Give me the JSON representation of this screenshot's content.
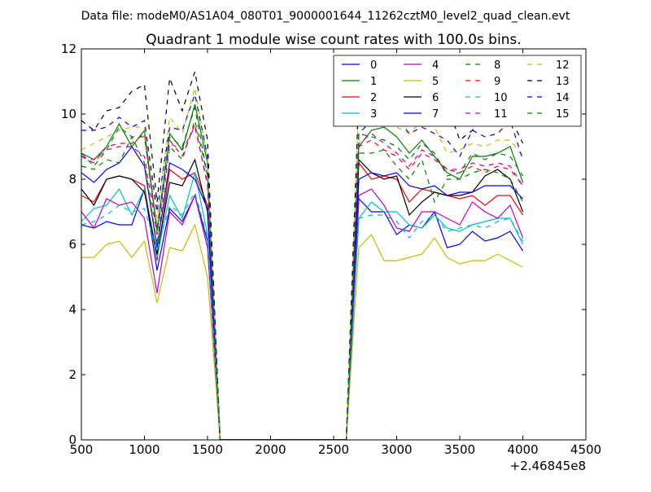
{
  "suptitle": "Data file: modeM0/AS1A04_080T01_9000001644_11262cztM0_level2_quad_clean.evt",
  "chart_data": {
    "type": "line",
    "title": "Quadrant 1 module wise count rates with 100.0s bins.",
    "xlabel": "",
    "ylabel": "",
    "x_offset_label": "+2.46845e8",
    "xlim": [
      500,
      4500
    ],
    "ylim": [
      0,
      12
    ],
    "xticks": [
      500,
      1000,
      1500,
      2000,
      2500,
      3000,
      3500,
      4000,
      4500
    ],
    "yticks": [
      0,
      2,
      4,
      6,
      8,
      10,
      12
    ],
    "grid": false,
    "legend": {
      "placement": "top-right",
      "columns": 4
    },
    "x": [
      500,
      600,
      700,
      800,
      900,
      1000,
      1100,
      1200,
      1300,
      1400,
      1500,
      1600,
      1700,
      1800,
      1900,
      2000,
      2100,
      2200,
      2300,
      2400,
      2500,
      2600,
      2700,
      2800,
      2900,
      3000,
      3100,
      3200,
      3300,
      3400,
      3500,
      3600,
      3700,
      3800,
      3900,
      4000
    ],
    "series": [
      {
        "name": "0",
        "color": "#0000ff",
        "dash": "solid",
        "values": [
          6.6,
          6.5,
          6.7,
          6.6,
          6.6,
          7.7,
          5.2,
          7.1,
          6.7,
          7.5,
          6.1,
          0,
          0,
          0,
          0,
          0,
          0,
          0,
          0,
          0,
          0,
          0,
          7.4,
          7.0,
          7.0,
          6.3,
          6.6,
          6.5,
          7.0,
          5.9,
          6.0,
          6.4,
          6.1,
          6.2,
          6.4,
          5.8
        ]
      },
      {
        "name": "1",
        "color": "#008000",
        "dash": "solid",
        "values": [
          8.8,
          8.6,
          9.0,
          9.7,
          9.0,
          9.5,
          6.4,
          9.4,
          8.9,
          10.3,
          8.5,
          0,
          0,
          0,
          0,
          0,
          0,
          0,
          0,
          0,
          0,
          0,
          9.0,
          9.5,
          9.6,
          9.3,
          8.8,
          9.2,
          8.7,
          8.2,
          8.0,
          8.7,
          8.7,
          8.8,
          9.0,
          7.9
        ]
      },
      {
        "name": "2",
        "color": "#ff0000",
        "dash": "solid",
        "values": [
          7.5,
          7.3,
          8.0,
          8.1,
          8.0,
          7.8,
          5.5,
          8.3,
          8.0,
          8.2,
          7.2,
          0,
          0,
          0,
          0,
          0,
          0,
          0,
          0,
          0,
          0,
          0,
          8.5,
          8.0,
          8.1,
          8.0,
          7.3,
          7.7,
          7.6,
          7.5,
          7.4,
          7.5,
          7.2,
          7.5,
          7.5,
          6.9
        ]
      },
      {
        "name": "3",
        "color": "#00bfbf",
        "dash": "solid",
        "values": [
          6.7,
          7.1,
          7.2,
          7.7,
          6.9,
          7.7,
          5.6,
          7.5,
          6.8,
          8.2,
          6.3,
          0,
          0,
          0,
          0,
          0,
          0,
          0,
          0,
          0,
          0,
          0,
          6.8,
          7.3,
          7.0,
          7.0,
          6.6,
          6.5,
          6.9,
          6.5,
          6.4,
          6.6,
          6.7,
          6.8,
          6.8,
          6.0
        ]
      },
      {
        "name": "4",
        "color": "#bf00bf",
        "dash": "solid",
        "values": [
          7.0,
          6.5,
          7.4,
          7.2,
          7.3,
          6.8,
          4.5,
          7.0,
          6.6,
          7.5,
          5.9,
          0,
          0,
          0,
          0,
          0,
          0,
          0,
          0,
          0,
          0,
          0,
          7.5,
          7.7,
          7.2,
          6.5,
          6.4,
          7.0,
          7.0,
          6.8,
          6.6,
          7.3,
          7.0,
          6.8,
          7.2,
          6.2
        ]
      },
      {
        "name": "5",
        "color": "#bfbf00",
        "dash": "solid",
        "values": [
          5.6,
          5.6,
          6.0,
          6.1,
          5.6,
          6.1,
          4.2,
          5.9,
          5.8,
          6.6,
          5.0,
          0,
          0,
          0,
          0,
          0,
          0,
          0,
          0,
          0,
          0,
          0,
          5.9,
          6.3,
          5.5,
          5.5,
          5.6,
          5.7,
          6.2,
          5.6,
          5.4,
          5.5,
          5.5,
          5.7,
          5.5,
          5.3
        ]
      },
      {
        "name": "6",
        "color": "#000000",
        "dash": "solid",
        "values": [
          7.7,
          7.2,
          8.0,
          8.1,
          8.0,
          7.6,
          5.7,
          7.9,
          7.8,
          8.6,
          7.0,
          0,
          0,
          0,
          0,
          0,
          0,
          0,
          0,
          0,
          0,
          0,
          8.6,
          8.2,
          8.0,
          8.1,
          6.9,
          7.3,
          7.6,
          7.5,
          7.5,
          7.6,
          8.1,
          8.3,
          8.0,
          7.0
        ]
      },
      {
        "name": "7",
        "color": "#0000ff",
        "dash": "solid",
        "values": [
          8.2,
          7.9,
          8.3,
          8.5,
          9.0,
          8.4,
          5.9,
          8.5,
          8.3,
          8.0,
          7.1,
          0,
          0,
          0,
          0,
          0,
          0,
          0,
          0,
          0,
          0,
          0,
          8.0,
          8.2,
          8.1,
          8.2,
          7.8,
          7.7,
          7.8,
          7.5,
          7.6,
          7.6,
          7.8,
          7.8,
          7.8,
          7.4
        ]
      },
      {
        "name": "8",
        "color": "#008000",
        "dash": "dashed",
        "values": [
          8.4,
          8.3,
          8.6,
          8.5,
          9.3,
          8.5,
          6.0,
          9.0,
          8.6,
          9.8,
          8.1,
          0,
          0,
          0,
          0,
          0,
          0,
          0,
          0,
          0,
          0,
          0,
          8.8,
          8.8,
          8.9,
          8.4,
          8.0,
          8.6,
          7.3,
          8.0,
          8.0,
          8.2,
          8.3,
          8.2,
          8.0,
          7.3
        ]
      },
      {
        "name": "9",
        "color": "#ff0000",
        "dash": "dashed",
        "values": [
          8.7,
          8.5,
          9.0,
          9.1,
          9.1,
          9.4,
          6.3,
          9.2,
          8.7,
          9.7,
          7.8,
          0,
          0,
          0,
          0,
          0,
          0,
          0,
          0,
          0,
          0,
          0,
          9.0,
          9.2,
          8.9,
          8.7,
          8.3,
          8.8,
          8.6,
          8.3,
          8.2,
          8.4,
          8.2,
          8.4,
          8.3,
          7.8
        ]
      },
      {
        "name": "10",
        "color": "#00bfbf",
        "dash": "dashed",
        "values": [
          6.6,
          6.7,
          6.9,
          7.2,
          7.0,
          7.1,
          5.8,
          7.2,
          6.9,
          7.6,
          6.2,
          0,
          0,
          0,
          0,
          0,
          0,
          0,
          0,
          0,
          0,
          0,
          6.8,
          6.9,
          6.9,
          6.7,
          6.2,
          6.7,
          6.9,
          6.4,
          6.5,
          6.6,
          6.5,
          6.7,
          6.8,
          6.1
        ]
      },
      {
        "name": "11",
        "color": "#bf00bf",
        "dash": "dashed",
        "values": [
          8.7,
          8.6,
          8.9,
          9.0,
          9.0,
          8.7,
          6.3,
          9.1,
          8.9,
          9.6,
          7.9,
          0,
          0,
          0,
          0,
          0,
          0,
          0,
          0,
          0,
          0,
          0,
          9.1,
          9.4,
          9.1,
          8.8,
          8.4,
          8.9,
          8.7,
          8.3,
          8.3,
          8.5,
          8.4,
          8.5,
          8.4,
          7.8
        ]
      },
      {
        "name": "12",
        "color": "#bfbf00",
        "dash": "dashed",
        "values": [
          8.9,
          9.1,
          9.3,
          9.5,
          9.6,
          9.6,
          6.8,
          9.9,
          9.4,
          10.8,
          8.6,
          0,
          0,
          0,
          0,
          0,
          0,
          0,
          0,
          0,
          0,
          0,
          10.3,
          10.0,
          10.0,
          9.6,
          9.4,
          9.8,
          9.6,
          8.8,
          8.9,
          9.1,
          9.0,
          9.2,
          9.2,
          8.7
        ]
      },
      {
        "name": "13",
        "color": "#000000",
        "dash": "dashed",
        "values": [
          9.8,
          9.5,
          10.1,
          10.2,
          10.7,
          10.9,
          7.3,
          11.1,
          10.1,
          11.3,
          9.2,
          0,
          0,
          0,
          0,
          0,
          0,
          0,
          0,
          0,
          0,
          0,
          10.7,
          11.1,
          10.3,
          10.0,
          10.4,
          10.7,
          10.6,
          10.3,
          9.2,
          9.5,
          9.9,
          9.6,
          9.9,
          9.1
        ]
      },
      {
        "name": "14",
        "color": "#0000ff",
        "dash": "dashed",
        "values": [
          9.5,
          9.5,
          9.6,
          9.9,
          9.6,
          9.8,
          7.0,
          9.6,
          9.5,
          10.6,
          8.7,
          0,
          0,
          0,
          0,
          0,
          0,
          0,
          0,
          0,
          0,
          0,
          9.4,
          9.8,
          9.6,
          9.9,
          9.4,
          9.6,
          9.4,
          9.2,
          8.7,
          9.5,
          9.3,
          9.4,
          9.8,
          8.6
        ]
      },
      {
        "name": "15",
        "color": "#008000",
        "dash": "dashed",
        "values": [
          8.8,
          8.4,
          8.9,
          9.6,
          9.3,
          9.3,
          6.5,
          9.3,
          9.0,
          10.2,
          8.1,
          0,
          0,
          0,
          0,
          0,
          0,
          0,
          0,
          0,
          0,
          0,
          9.4,
          9.3,
          9.2,
          9.0,
          8.6,
          9.1,
          8.8,
          8.1,
          8.2,
          8.8,
          8.6,
          8.8,
          8.7,
          8.1
        ]
      }
    ]
  }
}
